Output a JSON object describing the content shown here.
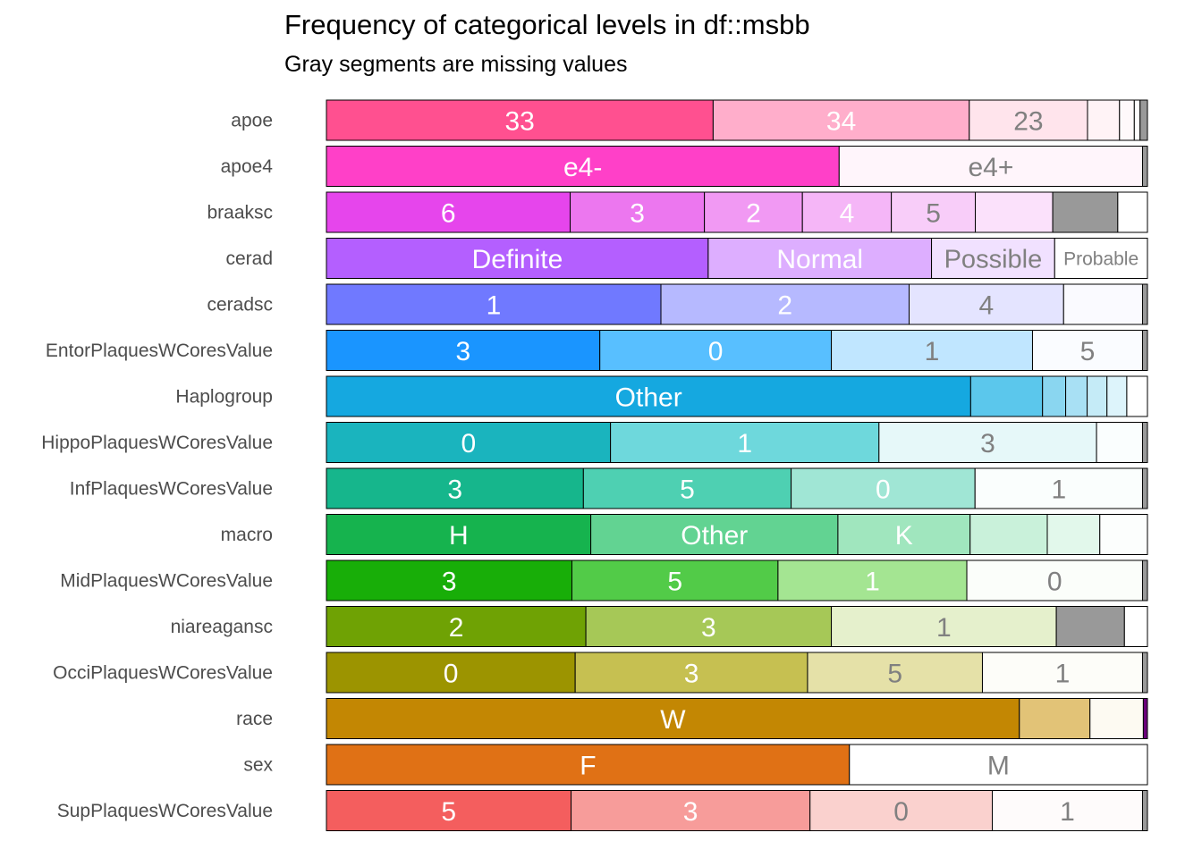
{
  "chart_data": {
    "type": "bar",
    "orientation": "horizontal-stacked-proportion",
    "title": "Frequency of categorical levels in df::msbb",
    "subtitle": "Gray segments are missing values",
    "missing_color": "#999999",
    "rows": [
      {
        "name": "apoe",
        "segments": [
          {
            "label": "33",
            "value": 47.1,
            "color": "#FF5090",
            "text_color": "#FFFFFF"
          },
          {
            "label": "34",
            "value": 31.2,
            "color": "#FFAECB",
            "text_color": "#FFFFFF"
          },
          {
            "label": "23",
            "value": 14.4,
            "color": "#FFE4EC",
            "text_color": "#808080"
          },
          {
            "label": "",
            "value": 3.9,
            "color": "#FFF3F6",
            "text_color": "#808080"
          },
          {
            "label": "",
            "value": 1.8,
            "color": "#FFF9FB",
            "text_color": "#808080"
          },
          {
            "label": "",
            "value": 0.7,
            "color": "#FFFDFE",
            "text_color": "#808080"
          },
          {
            "label": "",
            "value": 0.9,
            "color": "#999999",
            "text_color": "#808080",
            "missing": true
          }
        ]
      },
      {
        "name": "apoe4",
        "segments": [
          {
            "label": "e4-",
            "value": 62.7,
            "color": "#FF40C8",
            "text_color": "#FFFFFF"
          },
          {
            "label": "e4+",
            "value": 37.1,
            "color": "#FFF5FB",
            "text_color": "#808080"
          },
          {
            "label": "",
            "value": 0.6,
            "color": "#999999",
            "text_color": "#808080",
            "missing": true
          }
        ]
      },
      {
        "name": "braaksc",
        "segments": [
          {
            "label": "6",
            "value": 29.6,
            "color": "#E645EC",
            "text_color": "#FFFFFF"
          },
          {
            "label": "3",
            "value": 16.3,
            "color": "#EC77EF",
            "text_color": "#FFFFFF"
          },
          {
            "label": "2",
            "value": 11.9,
            "color": "#F199F3",
            "text_color": "#FFFFFF"
          },
          {
            "label": "4",
            "value": 10.8,
            "color": "#F5B6F7",
            "text_color": "#FFFFFF"
          },
          {
            "label": "5",
            "value": 10.2,
            "color": "#F8CDF9",
            "text_color": "#808080"
          },
          {
            "label": "",
            "value": 9.4,
            "color": "#FBE1FB",
            "text_color": "#808080"
          },
          {
            "label": "",
            "value": 7.9,
            "color": "#999999",
            "text_color": "#808080",
            "missing": true
          },
          {
            "label": "",
            "value": 3.6,
            "color": "#FFFFFF",
            "text_color": "#808080"
          }
        ]
      },
      {
        "name": "cerad",
        "segments": [
          {
            "label": "Definite",
            "value": 46.5,
            "color": "#B45FFF",
            "text_color": "#FFFFFF"
          },
          {
            "label": "Normal",
            "value": 27.2,
            "color": "#DDAEFF",
            "text_color": "#FFFFFF"
          },
          {
            "label": "Possible",
            "value": 15.0,
            "color": "#F1E1FF",
            "text_color": "#808080"
          },
          {
            "label": "Probable",
            "value": 11.3,
            "color": "#FFFFFF",
            "text_color": "#808080"
          }
        ]
      },
      {
        "name": "ceradsc",
        "segments": [
          {
            "label": "1",
            "value": 40.7,
            "color": "#7079FF",
            "text_color": "#FFFFFF"
          },
          {
            "label": "2",
            "value": 30.2,
            "color": "#B6B9FF",
            "text_color": "#FFFFFF"
          },
          {
            "label": "4",
            "value": 18.8,
            "color": "#E4E4FF",
            "text_color": "#808080"
          },
          {
            "label": "",
            "value": 9.6,
            "color": "#FAFAFF",
            "text_color": "#808080"
          },
          {
            "label": "",
            "value": 0.6,
            "color": "#999999",
            "text_color": "#808080",
            "missing": true
          }
        ]
      },
      {
        "name": "EntorPlaquesWCoresValue",
        "segments": [
          {
            "label": "3",
            "value": 33.3,
            "color": "#1A95FF",
            "text_color": "#FFFFFF"
          },
          {
            "label": "0",
            "value": 28.2,
            "color": "#58BFFF",
            "text_color": "#FFFFFF"
          },
          {
            "label": "1",
            "value": 24.5,
            "color": "#C0E6FF",
            "text_color": "#808080"
          },
          {
            "label": "5",
            "value": 13.4,
            "color": "#FAFCFF",
            "text_color": "#808080"
          },
          {
            "label": "",
            "value": 0.6,
            "color": "#999999",
            "text_color": "#808080",
            "missing": true
          }
        ]
      },
      {
        "name": "Haplogroup",
        "segments": [
          {
            "label": "Other",
            "value": 78.0,
            "color": "#15A8E0",
            "text_color": "#FFFFFF"
          },
          {
            "label": "",
            "value": 8.7,
            "color": "#5BC7EC",
            "text_color": "#808080"
          },
          {
            "label": "",
            "value": 2.8,
            "color": "#8AD6F0",
            "text_color": "#808080"
          },
          {
            "label": "",
            "value": 2.6,
            "color": "#A8E0F4",
            "text_color": "#808080"
          },
          {
            "label": "",
            "value": 2.4,
            "color": "#C5EBF7",
            "text_color": "#808080"
          },
          {
            "label": "",
            "value": 2.4,
            "color": "#DDF4FB",
            "text_color": "#808080"
          },
          {
            "label": "",
            "value": 2.5,
            "color": "#FFFFFF",
            "text_color": "#808080"
          }
        ]
      },
      {
        "name": "HippoPlaquesWCoresValue",
        "segments": [
          {
            "label": "0",
            "value": 34.6,
            "color": "#1AB4BE",
            "text_color": "#FFFFFF"
          },
          {
            "label": "1",
            "value": 32.7,
            "color": "#6ED8DC",
            "text_color": "#FFFFFF"
          },
          {
            "label": "3",
            "value": 26.5,
            "color": "#E6F8F9",
            "text_color": "#808080"
          },
          {
            "label": "",
            "value": 5.6,
            "color": "#FAFEFE",
            "text_color": "#808080"
          },
          {
            "label": "",
            "value": 0.6,
            "color": "#999999",
            "text_color": "#808080",
            "missing": true
          }
        ]
      },
      {
        "name": "InfPlaquesWCoresValue",
        "segments": [
          {
            "label": "3",
            "value": 31.3,
            "color": "#16B68C",
            "text_color": "#FFFFFF"
          },
          {
            "label": "5",
            "value": 25.3,
            "color": "#4ED0B2",
            "text_color": "#FFFFFF"
          },
          {
            "label": "0",
            "value": 22.4,
            "color": "#A0E6D5",
            "text_color": "#FFFFFF"
          },
          {
            "label": "1",
            "value": 20.4,
            "color": "#FAFEFD",
            "text_color": "#808080"
          },
          {
            "label": "",
            "value": 0.6,
            "color": "#999999",
            "text_color": "#808080",
            "missing": true
          }
        ]
      },
      {
        "name": "macro",
        "segments": [
          {
            "label": "H",
            "value": 32.2,
            "color": "#16B34E",
            "text_color": "#FFFFFF"
          },
          {
            "label": "Other",
            "value": 30.1,
            "color": "#62D392",
            "text_color": "#FFFFFF"
          },
          {
            "label": "K",
            "value": 16.1,
            "color": "#A0E6BE",
            "text_color": "#FFFFFF"
          },
          {
            "label": "",
            "value": 9.4,
            "color": "#C9F1DA",
            "text_color": "#808080"
          },
          {
            "label": "",
            "value": 6.4,
            "color": "#E2F8EB",
            "text_color": "#808080"
          },
          {
            "label": "",
            "value": 5.8,
            "color": "#FCFEFD",
            "text_color": "#808080"
          }
        ]
      },
      {
        "name": "MidPlaquesWCoresValue",
        "segments": [
          {
            "label": "3",
            "value": 29.9,
            "color": "#18AE08",
            "text_color": "#FFFFFF"
          },
          {
            "label": "5",
            "value": 25.1,
            "color": "#52CB48",
            "text_color": "#FFFFFF"
          },
          {
            "label": "1",
            "value": 23.0,
            "color": "#A4E592",
            "text_color": "#FFFFFF"
          },
          {
            "label": "0",
            "value": 21.4,
            "color": "#FBFEFA",
            "text_color": "#808080"
          },
          {
            "label": "",
            "value": 0.6,
            "color": "#999999",
            "text_color": "#808080",
            "missing": true
          }
        ]
      },
      {
        "name": "niareagansc",
        "segments": [
          {
            "label": "2",
            "value": 31.6,
            "color": "#6FA204",
            "text_color": "#FFFFFF"
          },
          {
            "label": "3",
            "value": 29.9,
            "color": "#A6C857",
            "text_color": "#FFFFFF"
          },
          {
            "label": "1",
            "value": 27.4,
            "color": "#E5F0CC",
            "text_color": "#808080"
          },
          {
            "label": "",
            "value": 8.3,
            "color": "#999999",
            "text_color": "#808080",
            "missing": true
          },
          {
            "label": "",
            "value": 2.8,
            "color": "#FFFFFF",
            "text_color": "#808080"
          }
        ]
      },
      {
        "name": "OcciPlaquesWCoresValue",
        "segments": [
          {
            "label": "0",
            "value": 30.3,
            "color": "#9C9400",
            "text_color": "#FFFFFF"
          },
          {
            "label": "3",
            "value": 28.3,
            "color": "#C6C051",
            "text_color": "#FFFFFF"
          },
          {
            "label": "5",
            "value": 21.3,
            "color": "#E5E1A8",
            "text_color": "#808080"
          },
          {
            "label": "1",
            "value": 19.5,
            "color": "#FDFDF9",
            "text_color": "#808080"
          },
          {
            "label": "",
            "value": 0.6,
            "color": "#999999",
            "text_color": "#808080",
            "missing": true
          }
        ]
      },
      {
        "name": "race",
        "segments": [
          {
            "label": "W",
            "value": 84.4,
            "color": "#C38703",
            "text_color": "#FFFFFF"
          },
          {
            "label": "",
            "value": 8.6,
            "color": "#E2C377",
            "text_color": "#808080"
          },
          {
            "label": "",
            "value": 6.5,
            "color": "#FDFAF2",
            "text_color": "#808080"
          },
          {
            "label": "",
            "value": 0.5,
            "color": "#6B007A",
            "text_color": "#808080"
          }
        ]
      },
      {
        "name": "sex",
        "segments": [
          {
            "label": "F",
            "value": 63.7,
            "color": "#E07115",
            "text_color": "#FFFFFF"
          },
          {
            "label": "M",
            "value": 36.3,
            "color": "#FFFFFF",
            "text_color": "#808080"
          }
        ]
      },
      {
        "name": "SupPlaquesWCoresValue",
        "segments": [
          {
            "label": "5",
            "value": 29.8,
            "color": "#F45E5E",
            "text_color": "#FFFFFF"
          },
          {
            "label": "3",
            "value": 29.1,
            "color": "#F79C9A",
            "text_color": "#FFFFFF"
          },
          {
            "label": "0",
            "value": 22.2,
            "color": "#FAD1CE",
            "text_color": "#808080"
          },
          {
            "label": "1",
            "value": 18.3,
            "color": "#FEFBFB",
            "text_color": "#808080"
          },
          {
            "label": "",
            "value": 0.6,
            "color": "#999999",
            "text_color": "#808080",
            "missing": true
          }
        ]
      }
    ]
  }
}
